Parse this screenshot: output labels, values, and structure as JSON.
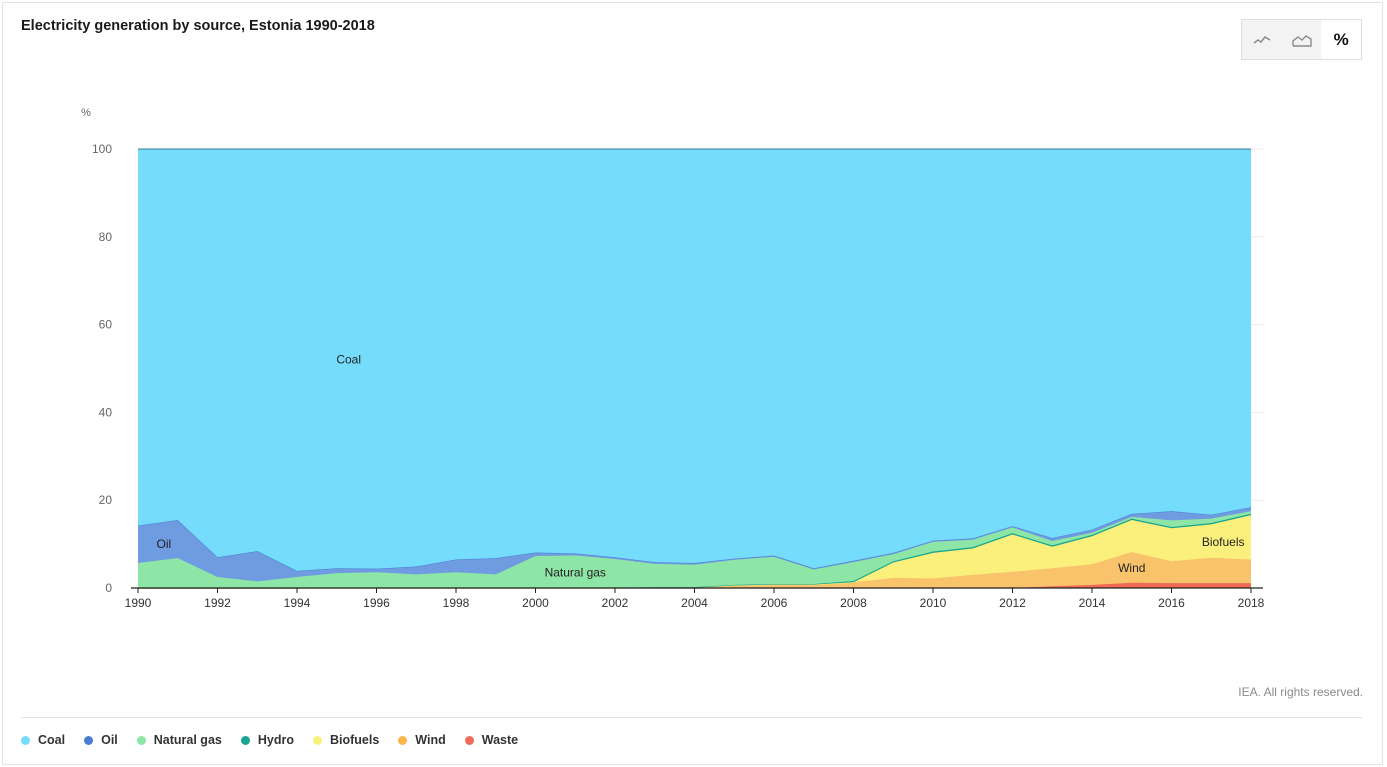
{
  "header": {
    "title": "Electricity generation by source, Estonia 1990-2018"
  },
  "toggle": {
    "buttons": [
      {
        "name": "line-chart-icon",
        "glyph": "⌁"
      },
      {
        "name": "area-chart-icon",
        "glyph": "⛰"
      },
      {
        "name": "percent-icon",
        "glyph": "%"
      }
    ],
    "percent_label": "%"
  },
  "source_text": "IEA. All rights reserved.",
  "chart_data": {
    "type": "area",
    "stacked": true,
    "normalized": true,
    "title": "Electricity generation by source, Estonia 1990-2018",
    "ylabel": "%",
    "ylim": [
      0,
      100
    ],
    "yticks": [
      0,
      20,
      40,
      60,
      80,
      100
    ],
    "x": [
      1990,
      1991,
      1992,
      1993,
      1994,
      1995,
      1996,
      1997,
      1998,
      1999,
      2000,
      2001,
      2002,
      2003,
      2004,
      2005,
      2006,
      2007,
      2008,
      2009,
      2010,
      2011,
      2012,
      2013,
      2014,
      2015,
      2016,
      2017,
      2018
    ],
    "xticks": [
      1990,
      1992,
      1994,
      1996,
      1998,
      2000,
      2002,
      2004,
      2006,
      2008,
      2010,
      2012,
      2014,
      2016,
      2018
    ],
    "grid": true,
    "legend_position": "bottom-left",
    "series": [
      {
        "name": "Waste",
        "color": "#f06a55",
        "values": [
          0,
          0,
          0,
          0,
          0,
          0,
          0,
          0,
          0,
          0,
          0,
          0,
          0,
          0,
          0,
          0,
          0,
          0,
          0,
          0,
          0,
          0,
          0,
          0.4,
          0.7,
          1.2,
          1.1,
          1.1,
          1.1
        ]
      },
      {
        "name": "Wind",
        "color": "#f9c36b",
        "values": [
          0,
          0,
          0,
          0,
          0,
          0,
          0,
          0,
          0,
          0,
          0,
          0,
          0,
          0.1,
          0.1,
          0.6,
          0.8,
          0.8,
          1.3,
          2.3,
          2.2,
          3.0,
          3.7,
          4.1,
          4.7,
          7.0,
          5.0,
          5.8,
          5.4
        ]
      },
      {
        "name": "Biofuels",
        "color": "#fbf07c",
        "values": [
          0,
          0,
          0,
          0,
          0,
          0,
          0,
          0,
          0,
          0,
          0,
          0,
          0,
          0,
          0,
          0,
          0,
          0,
          0,
          3.5,
          5.8,
          6.0,
          8.5,
          4.9,
          6.4,
          7.3,
          7.5,
          7.6,
          10.1
        ]
      },
      {
        "name": "Hydro",
        "color": "#17a58f",
        "values": [
          0,
          0,
          0,
          0,
          0,
          0.1,
          0.1,
          0.1,
          0.1,
          0.1,
          0.1,
          0.1,
          0.1,
          0.1,
          0.1,
          0.1,
          0.1,
          0.1,
          0.3,
          0.3,
          0.3,
          0.3,
          0.3,
          0.3,
          0.3,
          0.3,
          0.3,
          0.3,
          0.3
        ]
      },
      {
        "name": "Natural gas",
        "color": "#8de6a6",
        "values": [
          5.7,
          6.8,
          2.5,
          1.5,
          2.5,
          3.3,
          3.5,
          3.0,
          3.5,
          3.0,
          7.2,
          7.3,
          6.5,
          5.3,
          5.1,
          5.7,
          6.2,
          3.3,
          4.3,
          1.6,
          2.2,
          1.7,
          1.3,
          1.0,
          0.5,
          0.4,
          1.5,
          1.0,
          0.6
        ]
      },
      {
        "name": "Oil",
        "color": "#6f9be0",
        "values": [
          8.5,
          8.7,
          4.5,
          6.9,
          1.4,
          1.1,
          0.8,
          1.8,
          2.9,
          3.7,
          0.8,
          0.5,
          0.4,
          0.4,
          0.4,
          0.3,
          0.3,
          0.3,
          0.3,
          0.3,
          0.3,
          0.3,
          0.3,
          0.7,
          0.7,
          0.7,
          2.1,
          0.9,
          0.9
        ]
      },
      {
        "name": "Coal",
        "color": "#76dcfc",
        "values": [
          85.8,
          84.5,
          93.0,
          91.6,
          96.1,
          95.5,
          95.6,
          95.1,
          93.5,
          93.2,
          91.9,
          92.1,
          93.0,
          94.1,
          94.3,
          93.3,
          92.6,
          95.5,
          93.8,
          92.0,
          89.2,
          88.7,
          85.9,
          88.6,
          86.7,
          83.1,
          82.5,
          83.3,
          81.6
        ]
      }
    ],
    "annotations": [
      {
        "text": "Coal",
        "x": 1995.3,
        "y": 52
      },
      {
        "text": "Oil",
        "x": 1990.65,
        "y": 10
      },
      {
        "text": "Natural gas",
        "x": 2001,
        "y": 3.5
      },
      {
        "text": "Wind",
        "x": 2015,
        "y": 4.5
      },
      {
        "text": "Biofuels",
        "x": 2017.3,
        "y": 10.5
      }
    ],
    "legend_order": [
      "Coal",
      "Oil",
      "Natural gas",
      "Hydro",
      "Biofuels",
      "Wind",
      "Waste"
    ]
  },
  "legend": [
    {
      "label": "Coal",
      "color": "#76dcfc"
    },
    {
      "label": "Oil",
      "color": "#4a7ed6"
    },
    {
      "label": "Natural gas",
      "color": "#8de6a6"
    },
    {
      "label": "Hydro",
      "color": "#17a58f"
    },
    {
      "label": "Biofuels",
      "color": "#fbf07c"
    },
    {
      "label": "Wind",
      "color": "#f9b74a"
    },
    {
      "label": "Waste",
      "color": "#f06a55"
    }
  ]
}
